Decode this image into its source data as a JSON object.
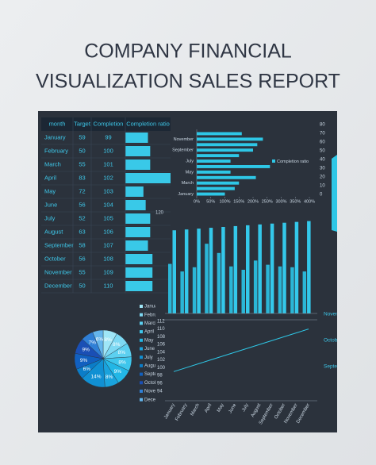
{
  "header": {
    "title_lines": [
      "COMPANY FINANCIAL",
      "VISUALIZATION SALES REPORT"
    ]
  },
  "table": {
    "columns": [
      "month",
      "Target",
      "Completion",
      "Completion ratio"
    ],
    "rows": [
      [
        "January",
        59,
        99
      ],
      [
        "February",
        50,
        100
      ],
      [
        "March",
        55,
        101
      ],
      [
        "April",
        83,
        102
      ],
      [
        "May",
        72,
        103
      ],
      [
        "June",
        56,
        104
      ],
      [
        "July",
        52,
        105
      ],
      [
        "August",
        63,
        106
      ],
      [
        "September",
        58,
        107
      ],
      [
        "October",
        56,
        108
      ],
      [
        "November",
        55,
        109
      ],
      [
        "December",
        50,
        110
      ]
    ],
    "ratio": [
      50,
      55,
      55,
      100,
      40,
      45,
      55,
      55,
      50,
      60,
      60,
      60
    ],
    "bar_color": "#39c9e8"
  },
  "charts": {
    "hbar": {
      "type": "bar",
      "orientation": "horizontal",
      "categories": [
        "January",
        null,
        "March",
        null,
        "May",
        null,
        "July",
        null,
        "September",
        null,
        "November",
        null
      ],
      "values": [
        100,
        135,
        150,
        210,
        120,
        260,
        120,
        150,
        200,
        215,
        235,
        160
      ],
      "color": "#2ec7e6",
      "legend": "Completion ratio",
      "xlim": [
        0,
        400
      ],
      "xticks": [
        {
          "value": 0,
          "label": "0%"
        },
        {
          "value": 50,
          "label": "50%"
        },
        {
          "value": 100,
          "label": "100%"
        },
        {
          "value": 150,
          "label": "150%"
        },
        {
          "value": 200,
          "label": "200%"
        },
        {
          "value": 250,
          "label": "250%"
        },
        {
          "value": 300,
          "label": "300%"
        },
        {
          "value": 350,
          "label": "350%"
        },
        {
          "value": 400,
          "label": "400%"
        }
      ]
    },
    "side": {
      "type": "axis",
      "ylim": [
        0,
        80
      ],
      "yticks": [
        0,
        10,
        20,
        30,
        40,
        50,
        60,
        70,
        80
      ]
    },
    "columns": {
      "type": "bar",
      "ylim": [
        0,
        120
      ],
      "yticks": [
        120
      ],
      "colors": [
        "#2bb6d6",
        "#34c8ea"
      ]
    },
    "pie": {
      "type": "pie",
      "values": [
        8,
        8,
        8,
        8,
        9,
        8,
        14,
        6,
        9,
        9,
        7,
        6
      ],
      "value_labels": [
        "8%",
        "8%",
        "8%",
        "8%",
        "9%",
        "8%",
        "14%",
        "6%",
        "9%",
        "9%",
        "7%",
        "6%"
      ],
      "colors": [
        "#9fe6f7",
        "#7dd9f3",
        "#5cd0f0",
        "#3ec6ec",
        "#23b7e6",
        "#1aa3dd",
        "#1190d3",
        "#0b7dc8",
        "#1160c0",
        "#1a4fb5",
        "#2f7fd6",
        "#64b5ec"
      ]
    },
    "line": {
      "type": "line",
      "ylim": [
        92.5,
        113
      ],
      "yticks": [
        94,
        96,
        98,
        100,
        102,
        104,
        106,
        108,
        110,
        112
      ],
      "color": "#2ec7e6"
    },
    "right_labels": [
      "November",
      "October",
      "September"
    ]
  }
}
